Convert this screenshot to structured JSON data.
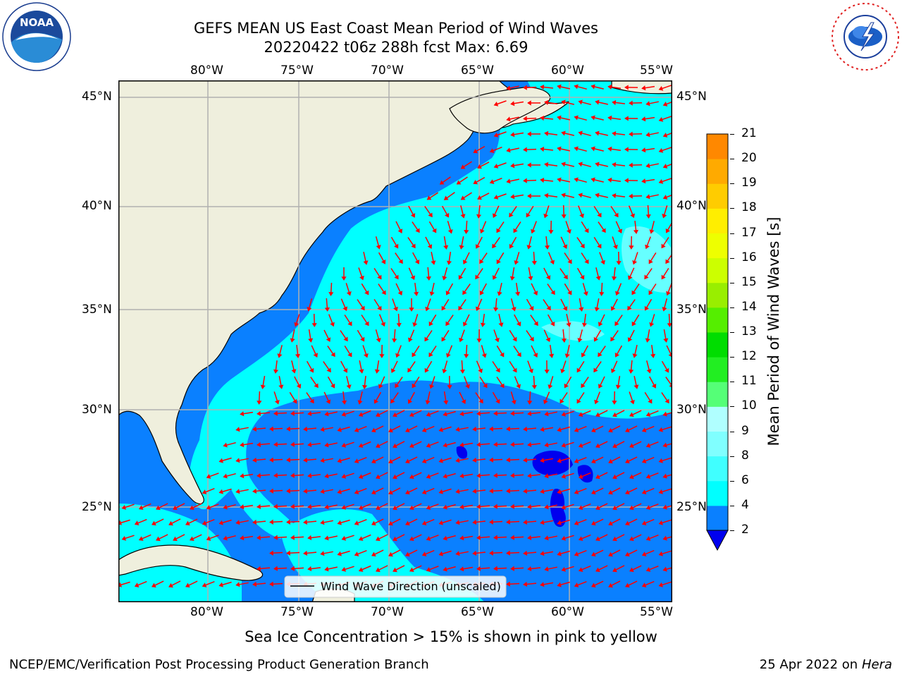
{
  "title": {
    "line1": "GEFS MEAN US East Coast Mean Period of Wind Waves",
    "line2": "20220422 t06z 288h fcst   Max: 6.69"
  },
  "logos": {
    "noaa": {
      "center_text": "NOAA",
      "ring_text": "NATIONAL OCEANIC AND ATMOSPHERIC ADMINISTRATION · U.S. DEPARTMENT OF COMMERCE"
    },
    "nws": {
      "ring_text": "NATIONAL WEATHER SERVICE"
    }
  },
  "map": {
    "lon_labels": [
      "80°W",
      "75°W",
      "70°W",
      "65°W",
      "60°W",
      "55°W"
    ],
    "lat_labels": [
      "45°N",
      "40°N",
      "35°N",
      "30°N",
      "25°N"
    ],
    "legend_label": "Wind Wave Direction (unscaled)",
    "colors": {
      "land": "#efefdd",
      "water_low": "#0a80ff",
      "water_mid": "#00ffff",
      "water_light": "#66ffff",
      "water_deep": "#0000ee",
      "arrow": "#ff0000",
      "grid": "#b0b0b0",
      "coast": "#000000"
    }
  },
  "colorbar": {
    "label": "Mean Period of Wind Waves [s]",
    "ticks": [
      "2",
      "4",
      "6",
      "8",
      "9",
      "10",
      "11",
      "12",
      "13",
      "14",
      "15",
      "16",
      "17",
      "18",
      "19",
      "20",
      "21"
    ],
    "colors": [
      "#0a80ff",
      "#00ffff",
      "#40ffff",
      "#80ffff",
      "#b0ffff",
      "#55ff77",
      "#22ee22",
      "#00dd00",
      "#55ee00",
      "#99ee00",
      "#ccff00",
      "#eeff00",
      "#ffee00",
      "#ffcc00",
      "#ffaa00",
      "#ff8800",
      "#ff6600",
      "#ff4400",
      "#ff2200",
      "#ff0000"
    ],
    "under_color": "#0000ee"
  },
  "sea_ice_note": "Sea Ice Concentration > 15% is shown in pink to yellow",
  "footer": {
    "left": "NCEP/EMC/Verification Post Processing Product Generation Branch",
    "right_date": "25 Apr 2022 on ",
    "right_machine": "Hera"
  }
}
